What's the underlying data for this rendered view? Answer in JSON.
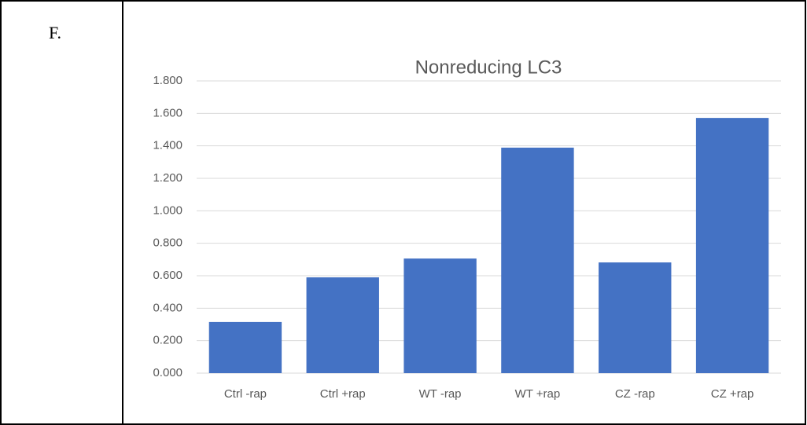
{
  "panel_label": "F.",
  "chart_data": {
    "type": "bar",
    "title": "Nonreducing LC3",
    "categories": [
      "Ctrl -rap",
      "Ctrl +rap",
      "WT -rap",
      "WT +rap",
      "CZ -rap",
      "CZ +rap"
    ],
    "values": [
      0.315,
      0.59,
      0.706,
      1.389,
      0.682,
      1.572
    ],
    "color": "#4472c4",
    "ylim": [
      0,
      1.8
    ],
    "yticks": [
      {
        "value": 0,
        "label": "0.000"
      },
      {
        "value": 0.2,
        "label": "0.200"
      },
      {
        "value": 0.4,
        "label": "0.400"
      },
      {
        "value": 0.6,
        "label": "0.600"
      },
      {
        "value": 0.8,
        "label": "0.800"
      },
      {
        "value": 1,
        "label": "1.000"
      },
      {
        "value": 1.2,
        "label": "1.200"
      },
      {
        "value": 1.4,
        "label": "1.400"
      },
      {
        "value": 1.6,
        "label": "1.600"
      },
      {
        "value": 1.8,
        "label": "1.800"
      }
    ],
    "grid": true
  }
}
